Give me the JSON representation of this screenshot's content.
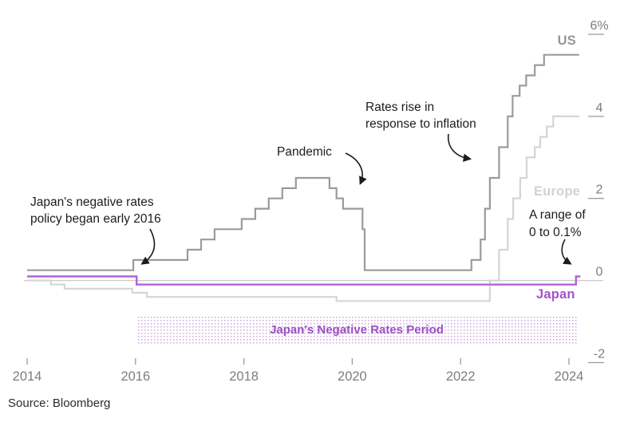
{
  "source": "Source: Bloomberg",
  "annotations": {
    "japan_start": "Japan's negative rates\npolicy began early 2016",
    "pandemic": "Pandemic",
    "inflation": "Rates rise in\nresponse to inflation",
    "range": "A range of\n0 to 0.1%"
  },
  "chart_data": {
    "type": "line",
    "step": true,
    "title": "",
    "xlabel": "",
    "ylabel": "",
    "unit": "%",
    "x_range": [
      2014,
      2024.3
    ],
    "y_range": [
      -2.2,
      6.3
    ],
    "grid": "zero-line-only",
    "legend_position": "inline-right-labels",
    "x_ticks": [
      {
        "value": 2014,
        "label": "2014"
      },
      {
        "value": 2016,
        "label": "2016"
      },
      {
        "value": 2018,
        "label": "2018"
      },
      {
        "value": 2020,
        "label": "2020"
      },
      {
        "value": 2022,
        "label": "2022"
      },
      {
        "value": 2024,
        "label": "2024"
      }
    ],
    "y_ticks": [
      {
        "value": 6,
        "label": "6%"
      },
      {
        "value": 4,
        "label": "4"
      },
      {
        "value": 2,
        "label": "2"
      },
      {
        "value": 0,
        "label": "0"
      },
      {
        "value": -2,
        "label": "-2"
      }
    ],
    "series": [
      {
        "name": "US",
        "color": "#9b9b9b",
        "label_color": "#969696",
        "width": 2.2,
        "draw_order": 2,
        "points": [
          [
            2014,
            0.25
          ],
          [
            2015.96,
            0.5
          ],
          [
            2016.96,
            0.75
          ],
          [
            2017.21,
            1.0
          ],
          [
            2017.46,
            1.25
          ],
          [
            2017.96,
            1.5
          ],
          [
            2018.21,
            1.75
          ],
          [
            2018.46,
            2.0
          ],
          [
            2018.71,
            2.25
          ],
          [
            2018.96,
            2.5
          ],
          [
            2019.58,
            2.25
          ],
          [
            2019.71,
            2.0
          ],
          [
            2019.83,
            1.75
          ],
          [
            2020.19,
            1.25
          ],
          [
            2020.23,
            0.25
          ],
          [
            2022.2,
            0.5
          ],
          [
            2022.37,
            1.0
          ],
          [
            2022.45,
            1.75
          ],
          [
            2022.54,
            2.5
          ],
          [
            2022.71,
            3.25
          ],
          [
            2022.87,
            4.0
          ],
          [
            2022.96,
            4.5
          ],
          [
            2023.09,
            4.75
          ],
          [
            2023.21,
            5.0
          ],
          [
            2023.37,
            5.25
          ],
          [
            2023.54,
            5.5
          ]
        ],
        "end_x": 2024.19
      },
      {
        "name": "Europe",
        "color": "#d5d5d5",
        "label_color": "#d2d2d2",
        "width": 2.2,
        "draw_order": 1,
        "points": [
          [
            2014,
            0.0
          ],
          [
            2014.44,
            -0.1
          ],
          [
            2014.69,
            -0.2
          ],
          [
            2015.94,
            -0.3
          ],
          [
            2016.21,
            -0.4
          ],
          [
            2019.71,
            -0.5
          ],
          [
            2022.54,
            0.0
          ],
          [
            2022.71,
            0.75
          ],
          [
            2022.87,
            1.5
          ],
          [
            2022.97,
            2.0
          ],
          [
            2023.1,
            2.5
          ],
          [
            2023.22,
            3.0
          ],
          [
            2023.37,
            3.25
          ],
          [
            2023.47,
            3.5
          ],
          [
            2023.59,
            3.75
          ],
          [
            2023.71,
            4.0
          ]
        ],
        "end_x": 2024.19
      },
      {
        "name": "Japan",
        "color": "#b164d4",
        "label_color": "#a453c9",
        "width": 2.4,
        "draw_order": 3,
        "points": [
          [
            2014,
            0.1
          ],
          [
            2016.02,
            -0.1
          ],
          [
            2024.13,
            0.1
          ]
        ],
        "end_x": 2024.21
      }
    ],
    "band": {
      "label": "Japan's Negative Rates Period",
      "x_start": 2016.02,
      "x_end": 2024.15,
      "dot_color": "#cda4e4",
      "label_color": "#9c4fc3"
    }
  }
}
